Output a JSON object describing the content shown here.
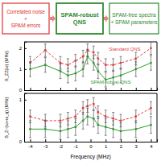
{
  "diagram": {
    "boxes": [
      {
        "lines": [
          "Correlated noise",
          "+",
          "SPAM errors"
        ],
        "color": "#e03030"
      },
      {
        "lines": [
          "SPAM-robust",
          "QNS"
        ],
        "color": "#2e8b2e"
      },
      {
        "lines": [
          "SPAM-free spectra",
          "+ SPAM parameters"
        ],
        "color": "#2e8b2e"
      }
    ]
  },
  "chart_data": [
    {
      "type": "line",
      "y_label": "S_ZZ(ω) (MHz)",
      "x": [
        -4,
        -3,
        -2,
        -1.5,
        -1,
        -0.5,
        -0.2,
        0.2,
        0.5,
        1,
        1.5,
        2,
        3,
        4
      ],
      "series": [
        {
          "name": "Standard QNS",
          "color": "#e03c3c",
          "line_style": "dashed",
          "marker": "circle",
          "values": [
            1.3,
            1.9,
            1.3,
            1.2,
            1.4,
            1.6,
            1.9,
            1.8,
            1.5,
            1.2,
            1.2,
            1.3,
            1.5,
            2.0
          ],
          "errors": [
            0.3,
            0.3,
            0.3,
            0.3,
            0.3,
            0.3,
            0.3,
            0.3,
            0.3,
            0.3,
            0.3,
            0.3,
            0.3,
            0.3
          ]
        },
        {
          "name": "SPAM-robust QNS",
          "color": "#2e9a2e",
          "line_style": "solid",
          "marker": "circle",
          "values": [
            1.0,
            1.2,
            0.9,
            0.7,
            0.8,
            1.0,
            1.6,
            1.3,
            0.9,
            0.5,
            0.6,
            0.7,
            1.0,
            1.3
          ],
          "errors": [
            0.35,
            0.35,
            0.35,
            0.35,
            0.35,
            0.35,
            0.35,
            0.35,
            0.35,
            0.35,
            0.35,
            0.35,
            0.35,
            0.35
          ]
        }
      ],
      "xlim": [
        -4.4,
        4.4
      ],
      "xticks": [
        -4,
        -3,
        -2,
        -1,
        0,
        1,
        2,
        3,
        4
      ],
      "ylim": [
        0,
        2.3
      ],
      "yticks": [
        0,
        1,
        2
      ],
      "tick_labels": "y"
    },
    {
      "type": "line",
      "x_label": "Frequency (MHz)",
      "y_label": "S_Z−(ω+ω_q) (MHz)",
      "x": [
        -4,
        -3,
        -2,
        -1.5,
        -1,
        -0.5,
        -0.2,
        0.2,
        0.5,
        1,
        1.5,
        2,
        3,
        4
      ],
      "series": [
        {
          "name": "Standard QNS",
          "color": "#e03c3c",
          "line_style": "dashed",
          "marker": "circle",
          "values": [
            0.6,
            0.5,
            0.5,
            0.55,
            0.6,
            0.8,
            0.85,
            0.9,
            0.7,
            0.6,
            0.55,
            0.5,
            0.6,
            0.8
          ],
          "errors": [
            0.15,
            0.15,
            0.15,
            0.15,
            0.15,
            0.15,
            0.15,
            0.15,
            0.15,
            0.15,
            0.15,
            0.15,
            0.15,
            0.15
          ]
        },
        {
          "name": "SPAM-robust QNS",
          "color": "#2e9a2e",
          "line_style": "solid",
          "marker": "circle",
          "values": [
            0.3,
            0.3,
            0.25,
            0.3,
            0.35,
            0.5,
            0.6,
            0.55,
            0.4,
            0.35,
            0.3,
            0.25,
            0.3,
            0.4
          ],
          "errors": [
            0.2,
            0.2,
            0.2,
            0.2,
            0.2,
            0.2,
            0.2,
            0.2,
            0.2,
            0.2,
            0.2,
            0.2,
            0.2,
            0.2
          ]
        }
      ],
      "xlim": [
        -4.4,
        4.4
      ],
      "xticks": [
        -4,
        -3,
        -2,
        -1,
        0,
        1,
        2,
        3,
        4
      ],
      "ylim": [
        0,
        1.15
      ],
      "yticks": [
        0,
        1
      ]
    }
  ]
}
